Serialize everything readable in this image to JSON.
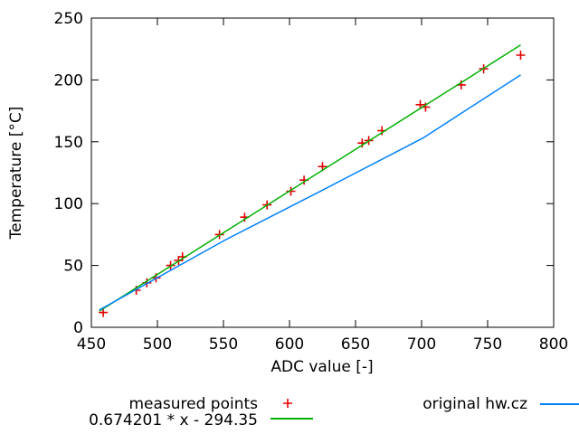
{
  "colors": {
    "measured": "#e00000",
    "fit": "#00b000",
    "original": "#0080ff",
    "axis": "#000000",
    "background": "#ffffff"
  },
  "axis_titles": {
    "y": "Temperature [°C]",
    "x": "ADC value [-]"
  },
  "chart_data": {
    "type": "scatter",
    "title": "",
    "xlabel": "ADC value [-]",
    "ylabel": "Temperature [°C]",
    "xlim": [
      450,
      800
    ],
    "ylim": [
      0,
      250
    ],
    "x_ticks": [
      450,
      500,
      550,
      600,
      650,
      700,
      750,
      800
    ],
    "y_ticks": [
      0,
      50,
      100,
      150,
      200,
      250
    ],
    "grid": false,
    "legend_position": "below",
    "series": [
      {
        "name": "measured points",
        "kind": "points",
        "marker": "plus",
        "color": "#e00000",
        "points": [
          [
            459,
            12
          ],
          [
            484,
            30
          ],
          [
            492,
            36
          ],
          [
            499,
            40
          ],
          [
            510,
            50
          ],
          [
            516,
            54
          ],
          [
            519,
            57
          ],
          [
            547,
            75
          ],
          [
            566,
            89
          ],
          [
            583,
            99
          ],
          [
            601,
            110
          ],
          [
            611,
            119
          ],
          [
            625,
            130
          ],
          [
            655,
            149
          ],
          [
            660,
            151
          ],
          [
            670,
            159
          ],
          [
            699,
            180
          ],
          [
            703,
            178
          ],
          [
            730,
            196
          ],
          [
            747,
            209
          ],
          [
            775,
            220
          ]
        ]
      },
      {
        "name": "0.674201 * x - 294.35",
        "kind": "line",
        "color": "#00b000",
        "points": [
          [
            456,
            13.1
          ],
          [
            775,
            228.2
          ]
        ]
      },
      {
        "name": "original hw.cz",
        "kind": "line",
        "color": "#0080ff",
        "points": [
          [
            456,
            14
          ],
          [
            552,
            71
          ],
          [
            627,
            112
          ],
          [
            701,
            153
          ],
          [
            775,
            204
          ]
        ]
      }
    ]
  }
}
